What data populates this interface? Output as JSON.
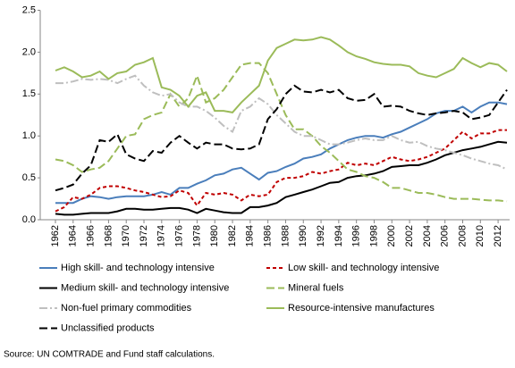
{
  "chart_data": {
    "type": "line",
    "source": "Source: UN COMTRADE and Fund staff calculations.",
    "x": [
      1962,
      1963,
      1964,
      1965,
      1966,
      1967,
      1968,
      1969,
      1970,
      1971,
      1972,
      1973,
      1974,
      1975,
      1976,
      1977,
      1978,
      1979,
      1980,
      1981,
      1982,
      1983,
      1984,
      1985,
      1986,
      1987,
      1988,
      1989,
      1990,
      1991,
      1992,
      1993,
      1994,
      1995,
      1996,
      1997,
      1998,
      1999,
      2000,
      2001,
      2002,
      2003,
      2004,
      2005,
      2006,
      2007,
      2008,
      2009,
      2010,
      2011,
      2012,
      2013
    ],
    "xlim": [
      1962,
      2013
    ],
    "xticks": [
      1962,
      1964,
      1966,
      1968,
      1970,
      1972,
      1974,
      1976,
      1978,
      1980,
      1982,
      1984,
      1986,
      1988,
      1990,
      1992,
      1994,
      1996,
      1998,
      2000,
      2002,
      2004,
      2006,
      2008,
      2010,
      2012
    ],
    "ylim": [
      0,
      2.5
    ],
    "yticks": [
      {
        "value": 0,
        "label": "0.0"
      },
      0.5,
      {
        "value": 1,
        "label": "1.0"
      },
      1.5,
      {
        "value": 2,
        "label": "2.0"
      },
      2.5
    ],
    "grid": false,
    "legend": "bottom",
    "series": [
      {
        "name": "High skill- and technology intensive",
        "color": "#4a7ebb",
        "dash": "solid",
        "values": [
          0.2,
          0.2,
          0.2,
          0.25,
          0.28,
          0.27,
          0.25,
          0.27,
          0.28,
          0.28,
          0.28,
          0.3,
          0.33,
          0.3,
          0.38,
          0.38,
          0.43,
          0.47,
          0.53,
          0.55,
          0.6,
          0.62,
          0.55,
          0.48,
          0.56,
          0.58,
          0.63,
          0.67,
          0.73,
          0.75,
          0.78,
          0.85,
          0.9,
          0.95,
          0.98,
          1.0,
          1.0,
          0.98,
          1.02,
          1.05,
          1.1,
          1.15,
          1.2,
          1.27,
          1.3,
          1.3,
          1.35,
          1.28,
          1.35,
          1.4,
          1.4,
          1.38
        ]
      },
      {
        "name": "Low skill- and technology intensive",
        "color": "#c00000",
        "dash": "dashed",
        "values": [
          0.1,
          0.15,
          0.27,
          0.25,
          0.3,
          0.38,
          0.4,
          0.4,
          0.38,
          0.35,
          0.33,
          0.3,
          0.27,
          0.28,
          0.35,
          0.32,
          0.17,
          0.32,
          0.3,
          0.32,
          0.3,
          0.23,
          0.3,
          0.28,
          0.3,
          0.45,
          0.5,
          0.5,
          0.52,
          0.57,
          0.55,
          0.58,
          0.6,
          0.68,
          0.65,
          0.67,
          0.65,
          0.7,
          0.75,
          0.72,
          0.7,
          0.72,
          0.75,
          0.8,
          0.85,
          0.95,
          1.05,
          0.97,
          1.03,
          1.03,
          1.07,
          1.07
        ]
      },
      {
        "name": "Medium skill- and technology intensive",
        "color": "#000000",
        "dash": "solid",
        "values": [
          0.07,
          0.06,
          0.06,
          0.07,
          0.08,
          0.08,
          0.08,
          0.1,
          0.13,
          0.13,
          0.12,
          0.12,
          0.13,
          0.14,
          0.14,
          0.12,
          0.08,
          0.13,
          0.11,
          0.09,
          0.08,
          0.08,
          0.15,
          0.15,
          0.17,
          0.2,
          0.27,
          0.3,
          0.33,
          0.36,
          0.4,
          0.44,
          0.45,
          0.5,
          0.52,
          0.53,
          0.55,
          0.58,
          0.63,
          0.64,
          0.65,
          0.65,
          0.68,
          0.72,
          0.77,
          0.8,
          0.83,
          0.85,
          0.87,
          0.9,
          0.93,
          0.92
        ]
      },
      {
        "name": "Mineral fuels",
        "color": "#9bbb59",
        "dash": "longdash",
        "values": [
          0.72,
          0.7,
          0.65,
          0.57,
          0.6,
          0.62,
          0.7,
          0.85,
          1.0,
          1.02,
          1.2,
          1.25,
          1.28,
          1.5,
          1.35,
          1.45,
          1.72,
          1.4,
          1.45,
          1.55,
          1.7,
          1.85,
          1.87,
          1.87,
          1.75,
          1.5,
          1.25,
          1.08,
          1.08,
          1.0,
          0.88,
          0.8,
          0.7,
          0.6,
          0.57,
          0.52,
          0.5,
          0.45,
          0.38,
          0.38,
          0.35,
          0.32,
          0.32,
          0.3,
          0.27,
          0.25,
          0.25,
          0.25,
          0.24,
          0.23,
          0.23,
          0.22
        ]
      },
      {
        "name": "Non-fuel primary commodities",
        "color": "#bfbfbf",
        "dash": "dashdot",
        "values": [
          1.63,
          1.63,
          1.65,
          1.68,
          1.67,
          1.68,
          1.67,
          1.63,
          1.68,
          1.72,
          1.6,
          1.52,
          1.48,
          1.5,
          1.4,
          1.35,
          1.35,
          1.3,
          1.22,
          1.12,
          1.05,
          1.3,
          1.35,
          1.45,
          1.38,
          1.25,
          1.15,
          1.05,
          1.0,
          1.0,
          0.95,
          0.9,
          0.9,
          0.92,
          0.95,
          0.97,
          0.95,
          0.95,
          1.0,
          0.95,
          0.92,
          0.93,
          0.88,
          0.85,
          0.83,
          0.8,
          0.77,
          0.73,
          0.7,
          0.67,
          0.65,
          0.6
        ]
      },
      {
        "name": "Resource-intensive manufactures",
        "color": "#9bbb59",
        "dash": "solid",
        "values": [
          1.78,
          1.82,
          1.77,
          1.7,
          1.72,
          1.77,
          1.68,
          1.75,
          1.77,
          1.85,
          1.88,
          1.93,
          1.58,
          1.55,
          1.48,
          1.35,
          1.48,
          1.52,
          1.3,
          1.3,
          1.28,
          1.4,
          1.5,
          1.6,
          1.9,
          2.05,
          2.1,
          2.15,
          2.14,
          2.15,
          2.18,
          2.15,
          2.08,
          2.0,
          1.95,
          1.92,
          1.88,
          1.86,
          1.85,
          1.85,
          1.83,
          1.75,
          1.72,
          1.7,
          1.75,
          1.8,
          1.93,
          1.87,
          1.82,
          1.87,
          1.85,
          1.77
        ]
      },
      {
        "name": "Unclassified products",
        "color": "#000000",
        "dash": "longdash",
        "values": [
          0.35,
          0.38,
          0.42,
          0.55,
          0.65,
          0.95,
          0.93,
          1.02,
          0.78,
          0.73,
          0.7,
          0.82,
          0.8,
          0.92,
          1.0,
          0.92,
          0.85,
          0.92,
          0.9,
          0.9,
          0.85,
          0.84,
          0.85,
          0.9,
          1.2,
          1.32,
          1.5,
          1.6,
          1.53,
          1.52,
          1.55,
          1.52,
          1.55,
          1.45,
          1.42,
          1.43,
          1.5,
          1.35,
          1.36,
          1.35,
          1.3,
          1.27,
          1.25,
          1.27,
          1.28,
          1.3,
          1.28,
          1.2,
          1.22,
          1.25,
          1.4,
          1.55
        ]
      }
    ]
  }
}
